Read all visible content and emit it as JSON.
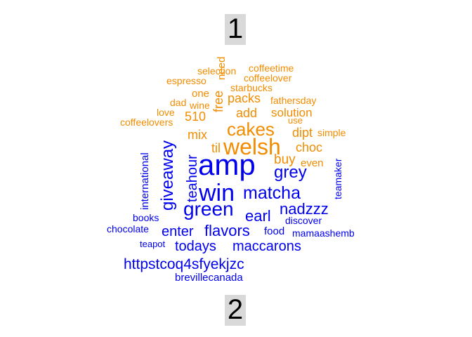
{
  "cloud": {
    "group_labels": [
      "1",
      "2"
    ],
    "colors": {
      "group1": "#f28c00",
      "group2": "#0000ee"
    },
    "group1_words": [
      "welsh",
      "cakes",
      "packs",
      "add",
      "solution",
      "free",
      "need",
      "one",
      "wine",
      "dad",
      "510",
      "mix",
      "til",
      "choc",
      "buy",
      "even",
      "dipt",
      "simple",
      "use",
      "fathersday",
      "starbucks",
      "coffeelover",
      "selection",
      "coffeetime",
      "espresso",
      "love",
      "coffeelovers"
    ],
    "group2_words": [
      "amp",
      "win",
      "green",
      "matcha",
      "giveaway",
      "teahour",
      "grey",
      "earl",
      "nadzzz",
      "flavors",
      "enter",
      "todays",
      "maccarons",
      "httpstcoq4sfyekjzc",
      "brevillecanada",
      "international",
      "teamaker",
      "discover",
      "food",
      "mamaashemb",
      "books",
      "chocolate",
      "teapot"
    ]
  }
}
